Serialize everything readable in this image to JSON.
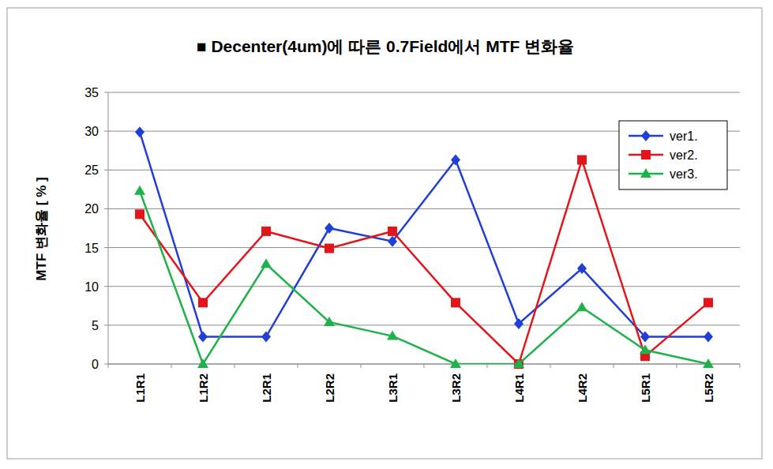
{
  "chart_data": {
    "type": "line",
    "title": "■ Decenter(4um)에 따른 0.7Field에서 MTF 변화율",
    "y_label": "MTF 변화율 [ % ]",
    "categories": [
      "L1R1",
      "L1R2",
      "L2R1",
      "L2R2",
      "L3R1",
      "L3R2",
      "L4R1",
      "L4R2",
      "L5R1",
      "L5R2"
    ],
    "series": [
      {
        "name": "ver1.",
        "color": "#1f3fd6",
        "marker": "diamond",
        "line_style": "solid",
        "values": [
          29.9,
          3.5,
          3.5,
          17.5,
          15.8,
          26.3,
          5.2,
          12.3,
          3.5,
          3.5
        ]
      },
      {
        "name": "ver2.",
        "color": "#e3151a",
        "marker": "square",
        "line_style": "solid",
        "values": [
          19.3,
          7.9,
          17.1,
          14.9,
          17.1,
          7.9,
          0,
          26.3,
          1.0,
          7.9
        ]
      },
      {
        "name": "ver3.",
        "color": "#1fb24a",
        "marker": "triangle",
        "line_style": "solid",
        "values": [
          22.3,
          0,
          12.9,
          5.4,
          3.6,
          0,
          0,
          7.3,
          1.8,
          0
        ]
      }
    ],
    "ylim": [
      0,
      35
    ],
    "yticks": [
      0,
      5,
      10,
      15,
      20,
      25,
      30,
      35
    ],
    "grid": true,
    "legend": "top-right"
  }
}
